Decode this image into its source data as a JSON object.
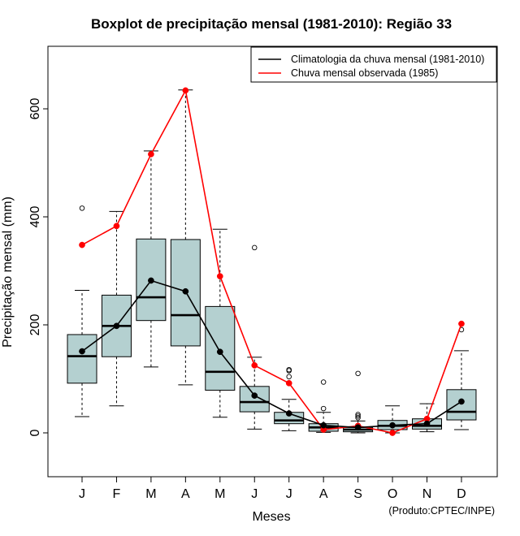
{
  "chart_data": {
    "type": "boxplot",
    "title": "Boxplot de precipitação mensal (1981-2010): Região 33",
    "xlabel": "Meses",
    "ylabel": "Precipitação mensal (mm)",
    "credit": "(Produto:CPTEC/INPE)",
    "ylim": [
      -80,
      710
    ],
    "yticks": [
      0,
      200,
      400,
      600
    ],
    "categories": [
      "J",
      "F",
      "M",
      "A",
      "M",
      "J",
      "J",
      "A",
      "S",
      "O",
      "N",
      "D"
    ],
    "boxes": [
      {
        "min": 30,
        "q1": 92,
        "median": 142,
        "q3": 182,
        "max": 264,
        "outliers": [
          416
        ]
      },
      {
        "min": 50,
        "q1": 141,
        "median": 198,
        "q3": 255,
        "max": 410,
        "outliers": []
      },
      {
        "min": 122,
        "q1": 208,
        "median": 251,
        "q3": 359,
        "max": 522,
        "outliers": []
      },
      {
        "min": 89,
        "q1": 161,
        "median": 218,
        "q3": 358,
        "max": 635,
        "outliers": []
      },
      {
        "min": 29,
        "q1": 79,
        "median": 113,
        "q3": 234,
        "max": 377,
        "outliers": []
      },
      {
        "min": 7,
        "q1": 39,
        "median": 57,
        "q3": 86,
        "max": 140,
        "outliers": [
          343
        ]
      },
      {
        "min": 4,
        "q1": 17,
        "median": 23,
        "q3": 38,
        "max": 62,
        "outliers": [
          104,
          115,
          117
        ]
      },
      {
        "min": 1,
        "q1": 3,
        "median": 10,
        "q3": 17,
        "max": 38,
        "outliers": [
          45,
          94
        ]
      },
      {
        "min": 0,
        "q1": 2,
        "median": 6,
        "q3": 10,
        "max": 22,
        "outliers": [
          28,
          31,
          34,
          110
        ]
      },
      {
        "min": 0,
        "q1": 6,
        "median": 13,
        "q3": 23,
        "max": 50,
        "outliers": []
      },
      {
        "min": 2,
        "q1": 7,
        "median": 13,
        "q3": 26,
        "max": 54,
        "outliers": []
      },
      {
        "min": 6,
        "q1": 24,
        "median": 39,
        "q3": 80,
        "max": 152,
        "outliers": [
          191
        ]
      }
    ],
    "series": [
      {
        "name": "Climatologia da chuva mensal (1981-2010)",
        "color": "#000000",
        "values": [
          151,
          198,
          282,
          262,
          150,
          69,
          36,
          14,
          10,
          14,
          17,
          58
        ]
      },
      {
        "name": "Chuva mensal observada (1985)",
        "color": "#ff0000",
        "values": [
          348,
          383,
          516,
          634,
          290,
          125,
          92,
          6,
          13,
          0,
          26,
          202
        ]
      }
    ],
    "box_fill": "#b4d0d0",
    "legend_position": "top-right"
  }
}
